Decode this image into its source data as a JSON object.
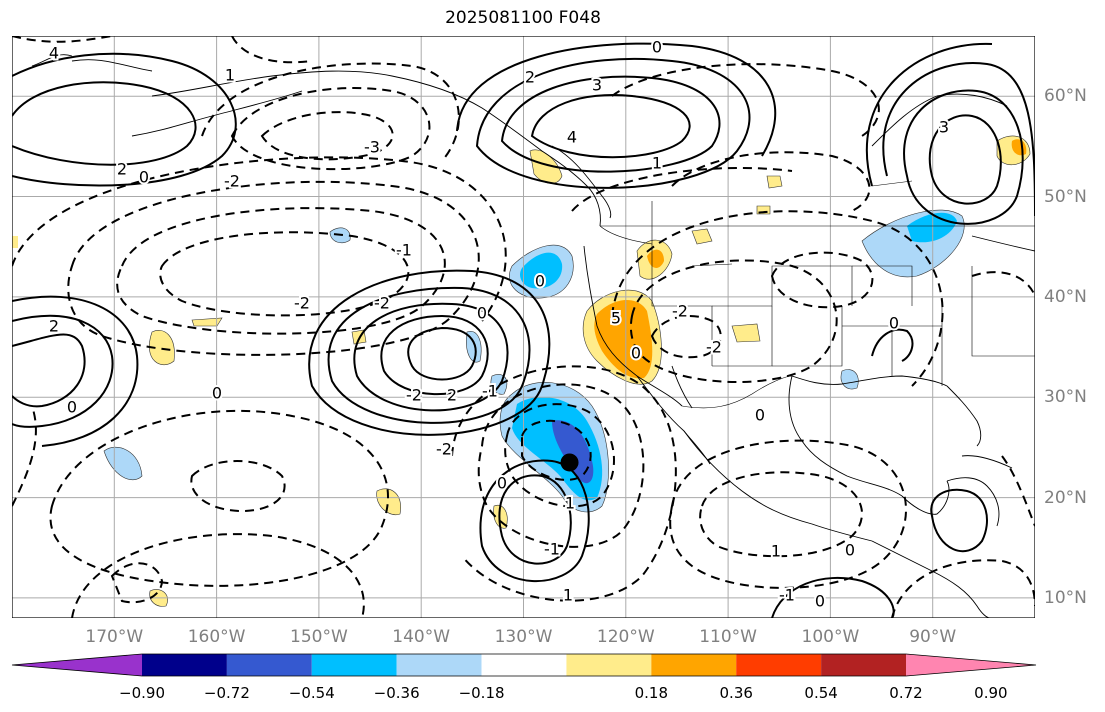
{
  "title": "2025081100 F048",
  "map": {
    "lon_range": [
      -180,
      -80
    ],
    "lat_range": [
      8,
      66
    ],
    "lon_labels": [
      "170°W",
      "160°W",
      "150°W",
      "140°W",
      "130°W",
      "120°W",
      "110°W",
      "100°W",
      "90°W"
    ],
    "lat_labels": [
      "10°N",
      "20°N",
      "30°N",
      "40°N",
      "50°N",
      "60°N"
    ],
    "storm_center": {
      "lon": -125.5,
      "lat": 23.5
    },
    "contour_labels": [
      "0",
      "2",
      "3",
      "4",
      "1",
      "2",
      "0",
      "-2",
      "-3",
      "-1",
      "-2",
      "-2",
      "0",
      "-1",
      "-2",
      "2",
      "4",
      "5",
      "0",
      "1",
      "-2",
      "0",
      "-2",
      "0",
      "0",
      "0",
      "-2",
      "-1",
      "1",
      "0",
      "0",
      "0",
      "1",
      "-1",
      "0",
      "1",
      "3",
      "2"
    ]
  },
  "colorbar": {
    "ticks": [
      "−0.90",
      "−0.72",
      "−0.54",
      "−0.36",
      "−0.18",
      "0.18",
      "0.36",
      "0.54",
      "0.72",
      "0.90"
    ],
    "colors": [
      "#9932cc",
      "#00008b",
      "#3559d0",
      "#00bfff",
      "#add8f8",
      "#ffffff",
      "#ffec8b",
      "#ffa500",
      "#ff3d00",
      "#b22222",
      "#ff85b0"
    ]
  }
}
